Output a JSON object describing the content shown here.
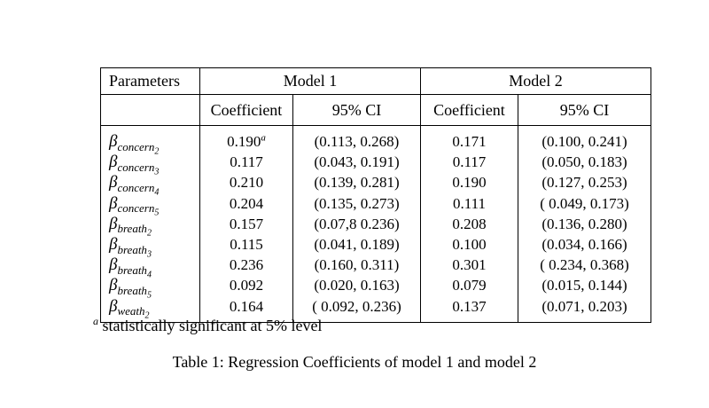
{
  "table": {
    "header": {
      "parameters": "Parameters",
      "model1": "Model 1",
      "model2": "Model 2",
      "coefficient": "Coefficient",
      "ci": "95% CI"
    },
    "rows": [
      {
        "param": {
          "base": "β",
          "sub": "concern",
          "subsub": "2"
        },
        "m1": {
          "coef": "0.190",
          "sup": "a",
          "ci": "(0.113, 0.268)"
        },
        "m2": {
          "coef": "0.171",
          "ci": "(0.100, 0.241)"
        }
      },
      {
        "param": {
          "base": "β",
          "sub": "concern",
          "subsub": "3"
        },
        "m1": {
          "coef": "0.117",
          "sup": "",
          "ci": "(0.043, 0.191)"
        },
        "m2": {
          "coef": "0.117",
          "ci": "(0.050, 0.183)"
        }
      },
      {
        "param": {
          "base": "β",
          "sub": "concern",
          "subsub": "4"
        },
        "m1": {
          "coef": "0.210",
          "sup": "",
          "ci": "(0.139, 0.281)"
        },
        "m2": {
          "coef": "0.190",
          "ci": "(0.127, 0.253)"
        }
      },
      {
        "param": {
          "base": "β",
          "sub": "concern",
          "subsub": "5"
        },
        "m1": {
          "coef": "0.204",
          "sup": "",
          "ci": "(0.135, 0.273)"
        },
        "m2": {
          "coef": "0.111",
          "ci": "( 0.049, 0.173)"
        }
      },
      {
        "param": {
          "base": "β",
          "sub": "breath",
          "subsub": "2"
        },
        "m1": {
          "coef": "0.157",
          "sup": "",
          "ci": "(0.07,8 0.236)"
        },
        "m2": {
          "coef": "0.208",
          "ci": "(0.136, 0.280)"
        }
      },
      {
        "param": {
          "base": "β",
          "sub": "breath",
          "subsub": "3"
        },
        "m1": {
          "coef": "0.115",
          "sup": "",
          "ci": "(0.041, 0.189)"
        },
        "m2": {
          "coef": "0.100",
          "ci": "(0.034, 0.166)"
        }
      },
      {
        "param": {
          "base": "β",
          "sub": "breath",
          "subsub": "4"
        },
        "m1": {
          "coef": "0.236",
          "sup": "",
          "ci": "(0.160, 0.311)"
        },
        "m2": {
          "coef": "0.301",
          "ci": "( 0.234, 0.368)"
        }
      },
      {
        "param": {
          "base": "β",
          "sub": "breath",
          "subsub": "5"
        },
        "m1": {
          "coef": "0.092",
          "sup": "",
          "ci": "(0.020, 0.163)"
        },
        "m2": {
          "coef": "0.079",
          "ci": "(0.015, 0.144)"
        }
      },
      {
        "param": {
          "base": "β",
          "sub": "weath",
          "subsub": "2"
        },
        "m1": {
          "coef": "0.164",
          "sup": "",
          "ci": "( 0.092, 0.236)"
        },
        "m2": {
          "coef": "0.137",
          "ci": "(0.071, 0.203)"
        }
      }
    ]
  },
  "footnote": {
    "marker": "a",
    "text": " statistically significant at 5% level"
  },
  "caption": "Table 1: Regression Coefficients of model 1 and model 2",
  "colors": {
    "background": "#ffffff",
    "text": "#000000",
    "border": "#000000"
  }
}
